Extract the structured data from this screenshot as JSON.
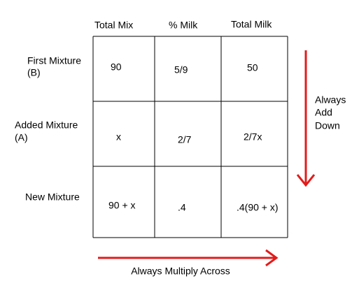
{
  "table": {
    "headers": [
      "Total Mix",
      "% Milk",
      "Total Milk"
    ],
    "row_labels": [
      [
        "First Mixture",
        "(B)"
      ],
      [
        "Added Mixture",
        "(A)"
      ],
      [
        "New Mixture"
      ]
    ],
    "rows": [
      [
        "90",
        "5/9",
        "50"
      ],
      [
        "x",
        "2/7",
        "2/7x"
      ],
      [
        "90 + x",
        ".4",
        ".4(90 + x)"
      ]
    ]
  },
  "annotations": {
    "down": [
      "Always",
      "Add",
      "Down"
    ],
    "across": "Always Multiply Across"
  }
}
